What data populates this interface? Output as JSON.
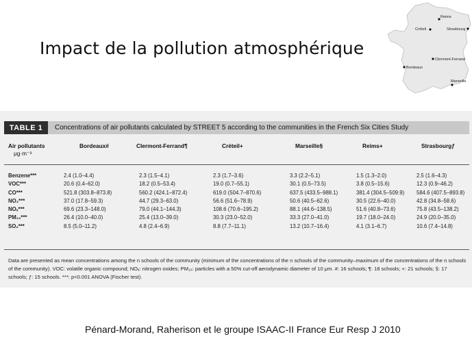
{
  "slide": {
    "title": "Impact de la pollution atmosphérique",
    "citation": "Pénard-Morand, Raherison et le groupe ISAAC-II France Eur Resp J 2010"
  },
  "map": {
    "cities": [
      {
        "name": "Reims"
      },
      {
        "name": "Créteil"
      },
      {
        "name": "Strasbourg"
      },
      {
        "name": "Clermont-Ferrand"
      },
      {
        "name": "Bordeaux"
      },
      {
        "name": "Marseille"
      }
    ]
  },
  "table": {
    "tag": "TABLE 1",
    "caption": "Concentrations of air pollutants calculated by STREET 5 according to the communities in the French Six Cities Study",
    "first_col_header": "Air pollutants",
    "unit": "μg·m⁻³",
    "columns": [
      "Bordeaux#",
      "Clermont-Ferrand¶",
      "Créteil+",
      "Marseille§",
      "Reims+",
      "Strasbourgƒ"
    ],
    "rows": [
      {
        "pollutant": "Benzene***",
        "values": [
          "2.4 (1.0–4.4)",
          "2.3 (1.5–4.1)",
          "2.3 (1.7–3.6)",
          "3.3 (2.2–5.1)",
          "1.5 (1.3–2.0)",
          "2.5 (1.6–4.3)"
        ]
      },
      {
        "pollutant": "VOC***",
        "values": [
          "20.6 (0.4–62.0)",
          "18.2 (0.5–53.4)",
          "19.0 (0.7–55.1)",
          "30.1 (0.5–73.5)",
          "3.8 (0.5–15.6)",
          "12.3 (0.9–46.2)"
        ]
      },
      {
        "pollutant": "CO***",
        "values": [
          "521.8 (303.8–873.8)",
          "560.2 (424.1–872.4)",
          "619.0 (504.7–870.6)",
          "637.5 (433.5–988.1)",
          "381.4 (304.5–509.9)",
          "584.6 (407.5–893.8)"
        ]
      },
      {
        "pollutant": "NO₂***",
        "values": [
          "37.0 (17.8–59.3)",
          "44.7 (29.3–63.0)",
          "56.6 (51.6–78.9)",
          "50.6 (40.5–62.6)",
          "30.5 (22.6–40.0)",
          "42.8 (34.8–58.6)"
        ]
      },
      {
        "pollutant": "NOₓ***",
        "values": [
          "69.6 (23.3–148.0)",
          "79.0 (44.1–144.3)",
          "108.6 (70.6–195.2)",
          "88.1 (44.6–138.5)",
          "51.6 (40.8–73.6)",
          "75.8 (43.5–138.2)"
        ]
      },
      {
        "pollutant": "PM₁₀***",
        "values": [
          "26.4 (10.0–40.0)",
          "25.4 (13.0–39.0)",
          "30.3 (23.0–52.0)",
          "33.3 (27.0–41.0)",
          "19.7 (18.0–24.0)",
          "24.9 (20.0–35.0)"
        ]
      },
      {
        "pollutant": "SO₂***",
        "values": [
          "8.5 (5.0–11.2)",
          "4.8 (2.4–6.9)",
          "8.8 (7.7–11.1)",
          "13.2 (10.7–16.4)",
          "4.1 (3.1–6.7)",
          "10.6 (7.4–14.8)"
        ]
      }
    ],
    "footnote": "Data are presented as mean concentrations among the n schools of the community (minimum of the concentrations of the n schools of the community–maximum of the concentrations of the n schools of the community). VOC: volatile organic compound; NOₓ: nitrogen oxides; PM₁₀: particles with a 50% cut-off aerodynamic diameter of 10 μm. #: 16 schools; ¶: 18 schools; +: 21 schools; §: 17 schools; ƒ: 15 schools. ***: p<0.001 ANOVA (Fischer test)."
  }
}
